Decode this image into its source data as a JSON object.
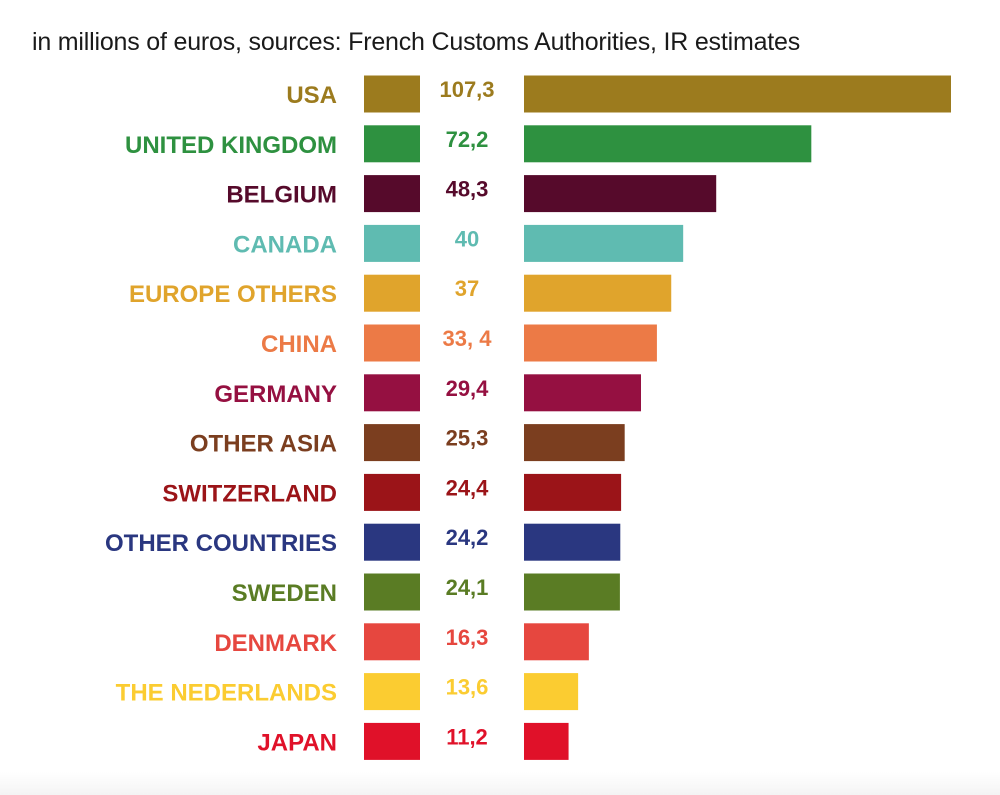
{
  "subtitle": "in millions of euros, sources: French Customs Authorities, IR estimates",
  "chart_data": {
    "type": "bar",
    "orientation": "horizontal",
    "title": "",
    "subtitle": "in millions of euros, sources: French Customs Authorities, IR estimates",
    "xlabel": "",
    "ylabel": "",
    "grid": false,
    "legend": "none",
    "categories": [
      "USA",
      "UNITED KINGDOM",
      "BELGIUM",
      "CANADA",
      "EUROPE OTHERS",
      "CHINA",
      "GERMANY",
      "OTHER ASIA",
      "SWITZERLAND",
      "OTHER COUNTRIES",
      "SWEDEN",
      "DENMARK",
      "THE NEDERLANDS",
      "JAPAN"
    ],
    "values": [
      107.3,
      72.2,
      48.3,
      40,
      37,
      33.4,
      29.4,
      25.3,
      24.4,
      24.2,
      24.1,
      16.3,
      13.6,
      11.2
    ],
    "value_labels": [
      "107,3",
      "72,2",
      "48,3",
      "40",
      "37",
      "33, 4",
      "29,4",
      "25,3",
      "24,4",
      "24,2",
      "24,1",
      "16,3",
      "13,6",
      "11,2"
    ],
    "colors": [
      "#9c7b1e",
      "#2e9140",
      "#560a2b",
      "#5fbbb1",
      "#e0a42c",
      "#ec7a46",
      "#951041",
      "#7b3e1f",
      "#9b1418",
      "#2a3780",
      "#5a7c24",
      "#e6473f",
      "#fbcc31",
      "#e01129"
    ],
    "xlim": [
      0,
      107.3
    ]
  }
}
